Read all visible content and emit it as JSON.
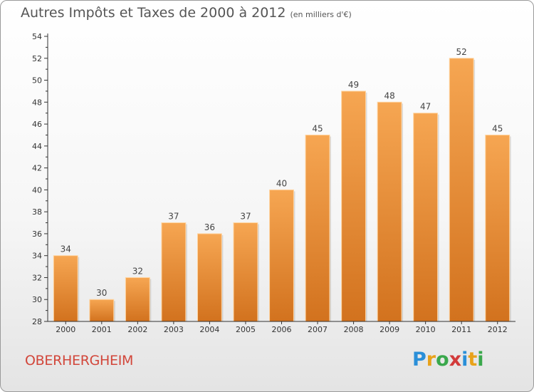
{
  "title": "Autres Impôts et Taxes de 2000 à 2012",
  "subtitle": "(en milliers d'€)",
  "commune": "OBERHERGHEIM",
  "logo": {
    "text": "Proxiti",
    "colors": [
      "#2a8fd8",
      "#e8a21a",
      "#3aa84c",
      "#d23a3a",
      "#2a8fd8",
      "#e8a21a",
      "#3aa84c"
    ]
  },
  "colors": {
    "bar_top": "#f6a652",
    "bar_bottom": "#d2721e",
    "bar_edge": "#ffd4a0",
    "axis": "#333333",
    "grid": "#d9d9d9"
  },
  "chart_data": {
    "type": "bar",
    "categories": [
      "2000",
      "2001",
      "2002",
      "2003",
      "2004",
      "2005",
      "2006",
      "2007",
      "2008",
      "2009",
      "2010",
      "2011",
      "2012"
    ],
    "values": [
      34,
      30,
      32,
      37,
      36,
      37,
      40,
      45,
      49,
      48,
      47,
      52,
      45
    ],
    "data_labels": [
      "34",
      "30",
      "32",
      "37",
      "36",
      "37",
      "40",
      "45",
      "49",
      "48",
      "47",
      "52",
      "45"
    ],
    "ylim": [
      28,
      54
    ],
    "yticks": [
      28,
      30,
      32,
      34,
      36,
      38,
      40,
      42,
      44,
      46,
      48,
      50,
      52,
      54
    ],
    "minor_step": 1,
    "grid": false
  }
}
